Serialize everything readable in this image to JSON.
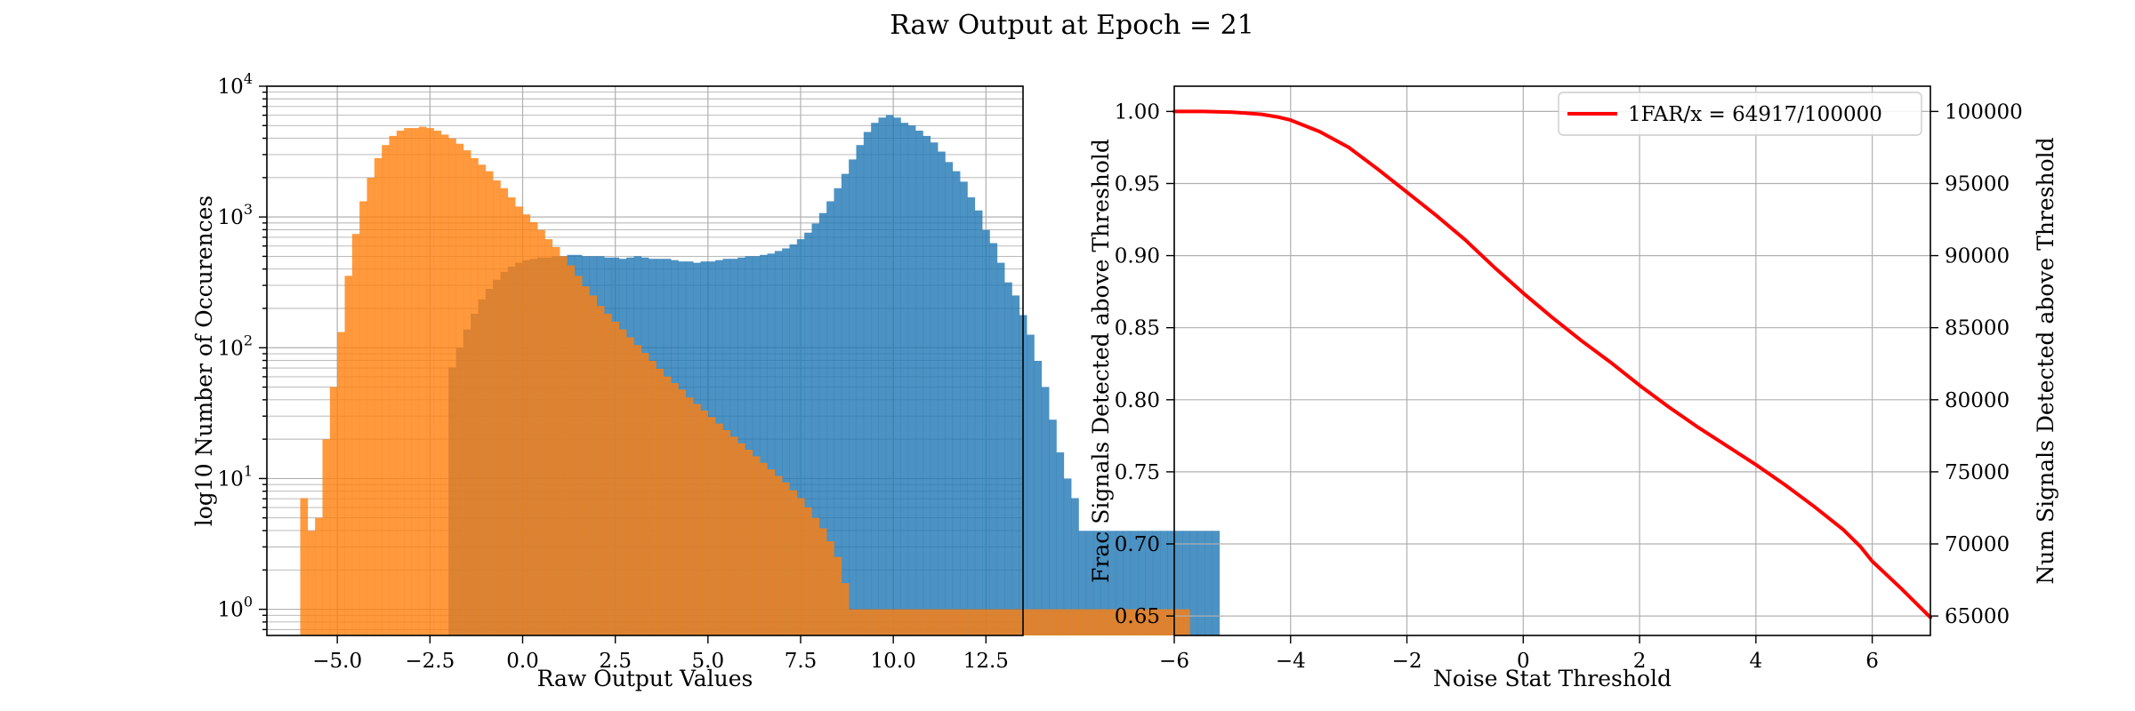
{
  "figure": {
    "suptitle": "Raw Output at Epoch = 21"
  },
  "chart_data": [
    {
      "type": "bar",
      "subtype": "histogram",
      "title": "",
      "xlabel": "Raw Output Values",
      "ylabel": "log10 Number of Occurences",
      "xlim": [
        -6.9,
        13.5
      ],
      "ylim_log": [
        -0.2,
        4.0
      ],
      "yscale": "log",
      "grid": true,
      "x_ticks": [
        -5.0,
        -2.5,
        0.0,
        2.5,
        5.0,
        7.5,
        10.0,
        12.5
      ],
      "x_tick_labels": [
        "−5.0",
        "−2.5",
        "0.0",
        "2.5",
        "5.0",
        "7.5",
        "10.0",
        "12.5"
      ],
      "y_ticks_log": [
        0,
        1,
        2,
        3,
        4
      ],
      "y_tick_bases": [
        "10",
        "10",
        "10",
        "10",
        "10"
      ],
      "y_tick_exponents": [
        "0",
        "1",
        "2",
        "3",
        "4"
      ],
      "series": [
        {
          "color": "#1f77b4",
          "opacity": 0.8,
          "bin_start": -2.0,
          "bin_width": 0.2,
          "log10_counts": [
            1.85,
            2.0,
            2.14,
            2.26,
            2.37,
            2.45,
            2.52,
            2.58,
            2.62,
            2.65,
            2.67,
            2.68,
            2.69,
            2.69,
            2.7,
            2.7,
            2.71,
            2.71,
            2.7,
            2.7,
            2.7,
            2.69,
            2.69,
            2.68,
            2.69,
            2.7,
            2.69,
            2.68,
            2.68,
            2.68,
            2.67,
            2.66,
            2.66,
            2.65,
            2.66,
            2.66,
            2.67,
            2.68,
            2.68,
            2.69,
            2.7,
            2.7,
            2.71,
            2.72,
            2.74,
            2.76,
            2.79,
            2.83,
            2.88,
            2.95,
            3.03,
            3.12,
            3.22,
            3.33,
            3.44,
            3.55,
            3.65,
            3.72,
            3.76,
            3.78,
            3.76,
            3.72,
            3.7,
            3.66,
            3.62,
            3.57,
            3.5,
            3.42,
            3.35,
            3.27,
            3.15,
            3.05,
            2.9,
            2.8,
            2.65,
            2.5,
            2.4,
            2.25,
            2.1,
            1.9,
            1.7,
            1.45,
            1.2,
            1.0,
            0.85,
            0.6,
            0.6,
            0.6,
            0.6,
            0.6,
            0.6,
            0.6,
            0.6,
            0.6,
            0.6,
            0.6,
            0.6,
            0.6,
            0.6,
            0.6,
            0.6,
            0.6,
            0.6,
            0.6
          ]
        },
        {
          "color": "#ff7f0e",
          "opacity": 0.8,
          "bin_start": -6.0,
          "bin_width": 0.2,
          "log10_counts": [
            0.85,
            0.6,
            0.7,
            1.3,
            1.7,
            2.12,
            2.55,
            2.87,
            3.12,
            3.3,
            3.45,
            3.55,
            3.62,
            3.66,
            3.68,
            3.68,
            3.69,
            3.68,
            3.66,
            3.63,
            3.6,
            3.56,
            3.51,
            3.45,
            3.4,
            3.35,
            3.28,
            3.22,
            3.15,
            3.08,
            3.02,
            2.96,
            2.9,
            2.83,
            2.77,
            2.7,
            2.63,
            2.55,
            2.47,
            2.4,
            2.32,
            2.26,
            2.2,
            2.14,
            2.08,
            2.02,
            1.96,
            1.9,
            1.84,
            1.78,
            1.73,
            1.68,
            1.62,
            1.57,
            1.52,
            1.47,
            1.42,
            1.37,
            1.32,
            1.27,
            1.22,
            1.17,
            1.12,
            1.07,
            1.02,
            0.97,
            0.91,
            0.85,
            0.78,
            0.7,
            0.62,
            0.52,
            0.4,
            0.2,
            0.0,
            0.0,
            0.0,
            0.0,
            0.0,
            0.0,
            0.0,
            0.0,
            0.0,
            0.0,
            0.0,
            0.0,
            0.0,
            0.0,
            0.0,
            0.0,
            0.0,
            0.0,
            0.0,
            0.0,
            0.0,
            0.0,
            0.0,
            0.0,
            0.0,
            0.0,
            0.0,
            0.0,
            0.0,
            0.0,
            0.0,
            0.0,
            0.0,
            0.0,
            0.0,
            0.0,
            0.0,
            0.0,
            0.0,
            0.0,
            0.0,
            0.0,
            0.0,
            0.0,
            0.0,
            0.0
          ]
        }
      ]
    },
    {
      "type": "line",
      "title": "",
      "xlabel": "Noise Stat Threshold",
      "ylabel": "Frac Signals Detected above Threshold",
      "ylabel_right": "Num Signals Detected above Threshold",
      "xlim": [
        -6,
        7
      ],
      "ylim": [
        0.6365,
        1.0175
      ],
      "ylim_right": [
        63650,
        101750
      ],
      "grid": true,
      "legend_position": "top-right",
      "x_ticks": [
        -6,
        -4,
        -2,
        0,
        2,
        4,
        6
      ],
      "x_tick_labels": [
        "−6",
        "−4",
        "−2",
        "0",
        "2",
        "4",
        "6"
      ],
      "y_ticks": [
        0.65,
        0.7,
        0.75,
        0.8,
        0.85,
        0.9,
        0.95,
        1.0
      ],
      "y_tick_labels": [
        "0.65",
        "0.70",
        "0.75",
        "0.80",
        "0.85",
        "0.90",
        "0.95",
        "1.00"
      ],
      "y_ticks_right": [
        65000,
        70000,
        75000,
        80000,
        85000,
        90000,
        95000,
        100000
      ],
      "y_tick_labels_right": [
        "65000",
        "70000",
        "75000",
        "80000",
        "85000",
        "90000",
        "95000",
        "100000"
      ],
      "series": [
        {
          "name": "1FAR/x = 64917/100000",
          "color": "#ff0000",
          "x": [
            -6.0,
            -5.5,
            -5.0,
            -4.5,
            -4.2,
            -4.0,
            -3.5,
            -3.0,
            -2.5,
            -2.0,
            -1.5,
            -1.0,
            -0.5,
            0.0,
            0.5,
            1.0,
            1.5,
            2.0,
            2.5,
            3.0,
            3.5,
            4.0,
            4.5,
            5.0,
            5.5,
            5.8,
            6.0,
            6.5,
            7.0
          ],
          "y": [
            1.0,
            1.0,
            0.9995,
            0.998,
            0.996,
            0.994,
            0.986,
            0.975,
            0.96,
            0.944,
            0.928,
            0.911,
            0.892,
            0.874,
            0.857,
            0.841,
            0.826,
            0.81,
            0.795,
            0.781,
            0.768,
            0.755,
            0.741,
            0.726,
            0.71,
            0.698,
            0.688,
            0.669,
            0.649
          ]
        }
      ]
    }
  ]
}
